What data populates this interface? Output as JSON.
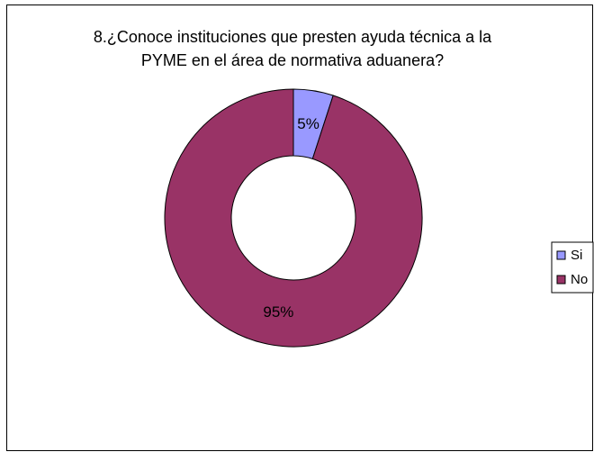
{
  "chart_data": {
    "type": "pie",
    "variant": "doughnut",
    "title": "8.¿Conoce instituciones que presten ayuda técnica a la PYME en el área de normativa aduanera?",
    "title_lines": [
      "8.¿Conoce instituciones que presten ayuda técnica a la",
      "PYME en el área de normativa aduanera?"
    ],
    "categories": [
      "Si",
      "No"
    ],
    "values": [
      5,
      95
    ],
    "data_labels": [
      "5%",
      "95%"
    ],
    "colors": [
      "#9999FF",
      "#993366"
    ],
    "legend": "right"
  }
}
